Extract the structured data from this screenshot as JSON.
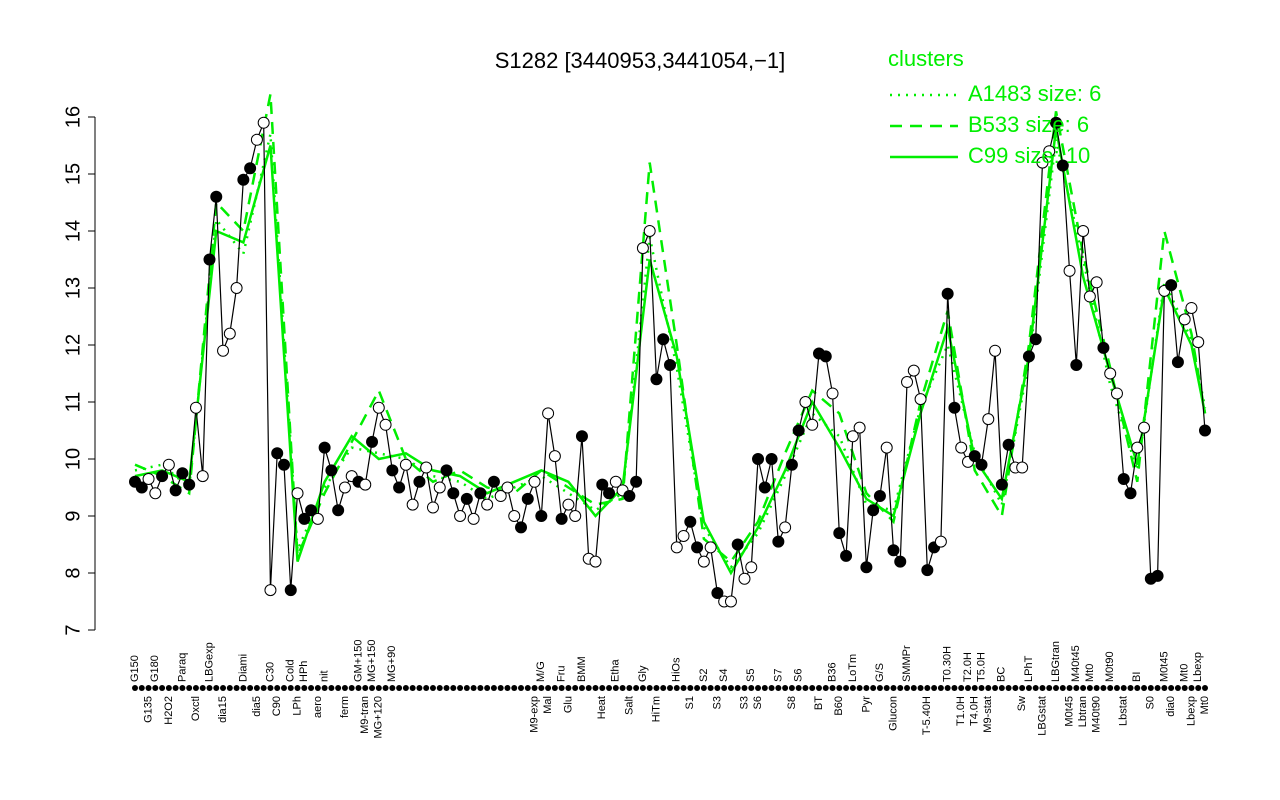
{
  "chart_data": {
    "type": "line",
    "title": "S1282 [3440953,3441054,−1]",
    "legend_title": "clusters",
    "legend_position": "top-right",
    "ylim": [
      7,
      16
    ],
    "yticks": [
      7,
      8,
      9,
      10,
      11,
      12,
      13,
      14,
      15,
      16
    ],
    "categories": [
      "G150",
      null,
      "G135",
      "G180",
      null,
      "H2O2",
      null,
      "Paraq",
      null,
      "Oxctl",
      null,
      "LBGexp",
      null,
      "dia15",
      null,
      null,
      "Diami",
      null,
      "dia5",
      null,
      "C30",
      "C90",
      null,
      "Cold",
      "LPh",
      "HPh",
      null,
      "aero",
      "nit",
      null,
      null,
      "ferm",
      null,
      "GM+150",
      "M9-tran",
      "MG+150",
      "MG+120",
      null,
      "MG+90",
      null,
      null,
      null,
      null,
      null,
      null,
      null,
      null,
      null,
      null,
      null,
      null,
      null,
      null,
      null,
      null,
      null,
      null,
      null,
      null,
      "M9-exp",
      "M/G",
      "Mal",
      null,
      "Fru",
      "Glu",
      null,
      "BMM",
      null,
      null,
      "Heat",
      null,
      "Etha",
      null,
      "Salt",
      null,
      "Gly",
      null,
      "HiTm",
      null,
      null,
      "HiOs",
      null,
      "S1",
      null,
      "S2",
      null,
      "S3",
      "S4",
      null,
      null,
      "S3",
      "S5",
      "S6",
      null,
      null,
      "S7",
      null,
      "S8",
      "S6",
      null,
      null,
      "BT",
      null,
      "B36",
      "B60",
      null,
      "LoTm",
      null,
      "Pyr",
      null,
      "G/S",
      null,
      "Glucon",
      null,
      "SMMPr",
      null,
      null,
      "T-5.40H",
      null,
      null,
      "T0.30H",
      null,
      "T1.0H",
      "T2.0H",
      "T4.0H",
      "T5.0H",
      "M9-stat",
      null,
      "BC",
      null,
      null,
      "Sw",
      "LPhT",
      null,
      "LBGstat",
      null,
      "LBGtran",
      null,
      "M0t45",
      "M40t45",
      "Lbtran",
      "Mt0",
      "M40t90",
      null,
      "M0t90",
      null,
      "Lbstat",
      null,
      "BI",
      null,
      "S0",
      null,
      "M0t45",
      "dia0",
      null,
      "Mt0",
      "Lbexp",
      "Lbexp",
      "Mt0"
    ],
    "series": [
      {
        "color": "#000000",
        "values": [
          9.6,
          9.5,
          9.65,
          9.4,
          9.7,
          9.9,
          9.45,
          9.75,
          9.55,
          10.9,
          9.7,
          13.5,
          14.6,
          11.9,
          12.2,
          13.0,
          14.9,
          15.1,
          15.6,
          15.9,
          7.7,
          10.1,
          9.9,
          7.7,
          9.4,
          8.95,
          9.1,
          8.95,
          10.2,
          9.8,
          9.1,
          9.5,
          9.7,
          9.6,
          9.55,
          10.3,
          10.9,
          10.6,
          9.8,
          9.5,
          9.9,
          9.2,
          9.6,
          9.85,
          9.15,
          9.5,
          9.8,
          9.4,
          9.0,
          9.3,
          8.95,
          9.4,
          9.2,
          9.6,
          9.35,
          9.5,
          9.0,
          8.8,
          9.3,
          9.6,
          9.0,
          10.8,
          10.05,
          8.95,
          9.2,
          9.0,
          10.4,
          8.25,
          8.2,
          9.55,
          9.4,
          9.6,
          9.45,
          9.35,
          9.6,
          13.7,
          14.0,
          11.4,
          12.1,
          11.65,
          8.45,
          8.65,
          8.9,
          8.45,
          8.2,
          8.45,
          7.65,
          7.5,
          7.5,
          8.5,
          7.9,
          8.1,
          10.0,
          9.5,
          10.0,
          8.55,
          8.8,
          9.9,
          10.5,
          11.0,
          10.6,
          11.85,
          11.8,
          11.15,
          8.7,
          8.3,
          10.4,
          10.55,
          8.1,
          9.1,
          9.35,
          10.2,
          8.4,
          8.2,
          11.35,
          11.55,
          11.05,
          8.05,
          8.45,
          8.55,
          12.9,
          10.9,
          10.2,
          9.95,
          10.05,
          9.9,
          10.7,
          11.9,
          9.55,
          10.25,
          9.85,
          9.85,
          11.8,
          12.1,
          15.2,
          15.4,
          15.9,
          15.15,
          13.3,
          11.65,
          14.0,
          12.85,
          13.1,
          11.95,
          11.5,
          11.15,
          9.65,
          9.4,
          10.2,
          10.55,
          7.9,
          7.95,
          12.95,
          13.05,
          11.7,
          12.45,
          12.65,
          12.05,
          10.5
        ],
        "marker_open": [
          false,
          false,
          true,
          true,
          false,
          true,
          false,
          false,
          false,
          true,
          true,
          false,
          false,
          true,
          true,
          true,
          false,
          false,
          true,
          true,
          true,
          false,
          false,
          false,
          true,
          false,
          false,
          true,
          false,
          false,
          false,
          true,
          true,
          false,
          true,
          false,
          true,
          true,
          false,
          false,
          true,
          true,
          false,
          true,
          true,
          true,
          false,
          false,
          true,
          false,
          true,
          false,
          true,
          false,
          true,
          true,
          true,
          false,
          false,
          true,
          false,
          true,
          true,
          false,
          true,
          true,
          false,
          true,
          true,
          false,
          false,
          true,
          true,
          false,
          false,
          true,
          true,
          false,
          false,
          false,
          true,
          true,
          false,
          false,
          true,
          true,
          false,
          true,
          true,
          false,
          true,
          true,
          false,
          false,
          false,
          false,
          true,
          false,
          false,
          true,
          true,
          false,
          false,
          true,
          false,
          false,
          true,
          true,
          false,
          false,
          false,
          true,
          false,
          false,
          true,
          true,
          true,
          false,
          false,
          true,
          false,
          false,
          true,
          true,
          false,
          false,
          true,
          true,
          false,
          false,
          true,
          true,
          false,
          false,
          true,
          true,
          false,
          false,
          true,
          false,
          true,
          true,
          true,
          false,
          true,
          true,
          false,
          false,
          true,
          true,
          false,
          false,
          true,
          false,
          false,
          true,
          true,
          true,
          false
        ]
      },
      {
        "name": "A1483 size: 6",
        "color": "#00ee00",
        "linestyle": "dotted",
        "x": [
          0,
          4,
          8,
          12,
          16,
          20,
          24,
          28,
          32,
          36,
          40,
          44,
          48,
          52,
          56,
          60,
          64,
          68,
          72,
          76,
          80,
          84,
          88,
          92,
          96,
          100,
          104,
          108,
          112,
          116,
          120,
          124,
          128,
          132,
          136,
          140,
          144,
          148,
          152,
          156,
          158
        ],
        "values": [
          9.8,
          9.9,
          9.5,
          14.2,
          13.6,
          15.7,
          8.4,
          9.5,
          10.2,
          10.1,
          10.0,
          9.7,
          9.6,
          9.3,
          9.5,
          9.7,
          9.4,
          9.1,
          9.4,
          13.9,
          11.6,
          8.8,
          8.1,
          8.7,
          9.7,
          10.8,
          10.4,
          9.2,
          9.1,
          10.9,
          12.0,
          10.1,
          9.2,
          11.7,
          15.6,
          13.5,
          11.3,
          9.8,
          13.1,
          12.1,
          10.9
        ]
      },
      {
        "name": "B533 size: 6",
        "color": "#00ee00",
        "linestyle": "dashed",
        "x": [
          0,
          4,
          8,
          12,
          16,
          20,
          24,
          28,
          32,
          36,
          40,
          44,
          48,
          52,
          56,
          60,
          64,
          68,
          72,
          76,
          80,
          84,
          88,
          92,
          96,
          100,
          104,
          108,
          112,
          116,
          120,
          124,
          128,
          132,
          136,
          140,
          144,
          148,
          152,
          156,
          158
        ],
        "values": [
          9.9,
          9.7,
          9.4,
          14.5,
          14.0,
          16.4,
          8.3,
          9.4,
          10.3,
          11.2,
          10.0,
          9.6,
          9.8,
          9.5,
          9.4,
          9.8,
          9.5,
          9.2,
          9.3,
          15.2,
          12.0,
          8.6,
          8.2,
          8.9,
          10.1,
          11.2,
          10.8,
          9.4,
          8.9,
          11.0,
          12.6,
          9.8,
          9.0,
          12.0,
          16.1,
          13.6,
          11.6,
          9.6,
          14.0,
          12.2,
          10.8
        ]
      },
      {
        "name": "C99 size: 10",
        "color": "#00ee00",
        "linestyle": "solid",
        "x": [
          0,
          4,
          8,
          12,
          16,
          20,
          24,
          28,
          32,
          36,
          40,
          44,
          48,
          52,
          56,
          60,
          64,
          68,
          72,
          76,
          80,
          84,
          88,
          92,
          96,
          100,
          104,
          108,
          112,
          116,
          120,
          124,
          128,
          132,
          136,
          140,
          144,
          148,
          152,
          156,
          158
        ],
        "values": [
          9.7,
          9.8,
          9.6,
          14.0,
          13.8,
          15.5,
          8.2,
          9.6,
          10.4,
          10.0,
          10.1,
          9.8,
          9.7,
          9.4,
          9.6,
          9.8,
          9.6,
          9.0,
          9.5,
          13.5,
          11.8,
          8.9,
          8.0,
          8.8,
          9.8,
          11.0,
          10.2,
          9.3,
          9.0,
          10.8,
          12.3,
          10.0,
          9.3,
          11.8,
          15.8,
          13.2,
          11.5,
          9.9,
          13.0,
          12.0,
          10.8
        ]
      }
    ]
  }
}
